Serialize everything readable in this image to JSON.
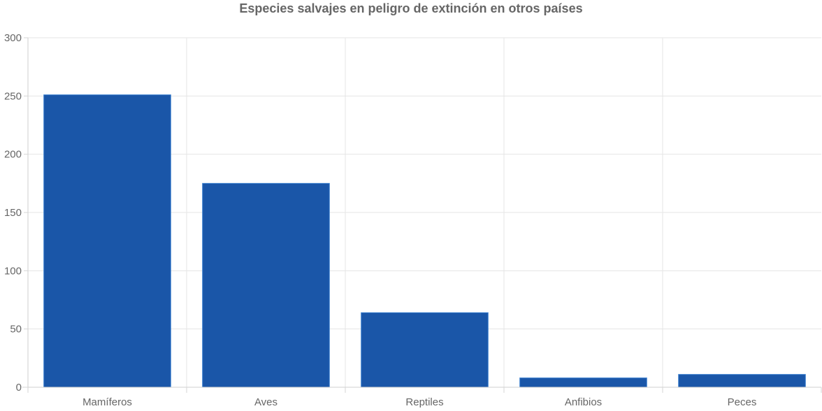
{
  "chart_data": {
    "type": "bar",
    "title": "Especies salvajes en peligro de extinción en otros países",
    "categories": [
      "Mamíferos",
      "Aves",
      "Reptiles",
      "Anfibios",
      "Peces"
    ],
    "values": [
      251,
      175,
      64,
      8,
      11
    ],
    "ylim": [
      0,
      300
    ],
    "yticks": [
      "0",
      "50",
      "100",
      "150",
      "200",
      "250",
      "300"
    ],
    "xlabel": "",
    "ylabel": "",
    "grid": true,
    "legend": "none",
    "colors": {
      "bar_fill": "#1a56a8",
      "bar_stroke": "#3a7fcf",
      "text": "#666666",
      "grid": "#e5e5e5"
    }
  }
}
